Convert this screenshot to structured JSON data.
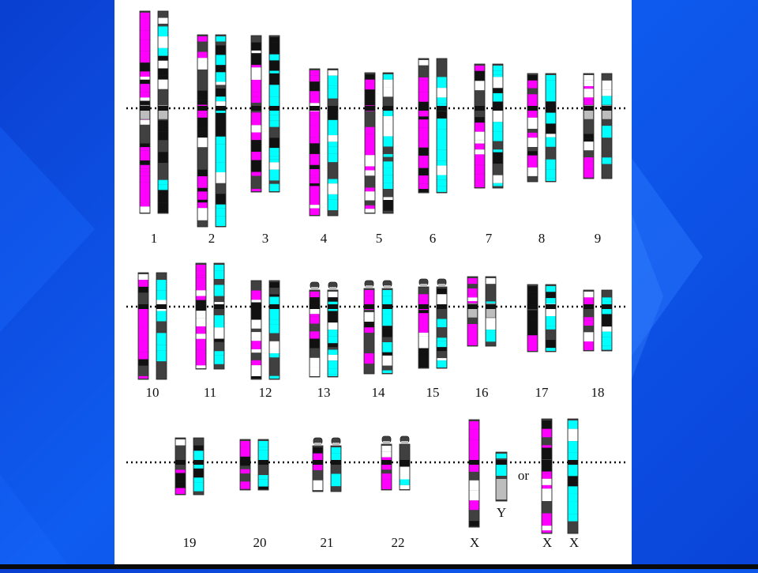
{
  "colors": {
    "magenta": "#ff00ff",
    "cyan": "#00ffff",
    "band_dark": "#404040",
    "band_black": "#111111",
    "centromere_gray": "#bdbdbd",
    "background_blue": "#0f5cf0",
    "panel_white": "#ffffff"
  },
  "rows": [
    {
      "chromosomes": [
        {
          "label": "1",
          "pair": true,
          "centromere": "gray-block"
        },
        {
          "label": "2",
          "pair": true
        },
        {
          "label": "3",
          "pair": true
        },
        {
          "label": "4",
          "pair": true
        },
        {
          "label": "5",
          "pair": true
        },
        {
          "label": "6",
          "pair": true
        },
        {
          "label": "7",
          "pair": true
        },
        {
          "label": "8",
          "pair": true
        },
        {
          "label": "9",
          "pair": true,
          "centromere": "gray-block"
        }
      ]
    },
    {
      "chromosomes": [
        {
          "label": "10",
          "pair": true
        },
        {
          "label": "11",
          "pair": true
        },
        {
          "label": "12",
          "pair": true
        },
        {
          "label": "13",
          "pair": true,
          "satellite": true
        },
        {
          "label": "14",
          "pair": true,
          "satellite": true
        },
        {
          "label": "15",
          "pair": true,
          "satellite": true
        },
        {
          "label": "16",
          "pair": true,
          "centromere": "gray-block"
        },
        {
          "label": "17",
          "pair": true
        },
        {
          "label": "18",
          "pair": true
        }
      ]
    },
    {
      "chromosomes": [
        {
          "label": "19",
          "pair": true
        },
        {
          "label": "20",
          "pair": true
        },
        {
          "label": "21",
          "pair": true,
          "satellite": true
        },
        {
          "label": "22",
          "pair": true,
          "satellite": true
        }
      ],
      "sex_chromosomes": {
        "male": {
          "x_label": "X",
          "y_label": "Y"
        },
        "connector": "or",
        "female": {
          "labels": [
            "X",
            "X"
          ]
        }
      }
    }
  ]
}
